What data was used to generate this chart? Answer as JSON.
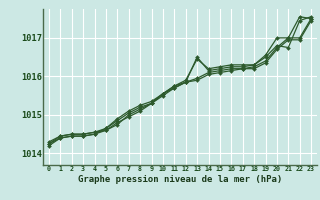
{
  "xlabel": "Graphe pression niveau de la mer (hPa)",
  "bg_color": "#cce8e4",
  "grid_color": "#ffffff",
  "line_color": "#2d5a2d",
  "axis_color": "#4a6a4a",
  "xlim": [
    -0.5,
    23.5
  ],
  "ylim": [
    1013.7,
    1017.75
  ],
  "yticks": [
    1014,
    1015,
    1016,
    1017
  ],
  "xticks": [
    0,
    1,
    2,
    3,
    4,
    5,
    6,
    7,
    8,
    9,
    10,
    11,
    12,
    13,
    14,
    15,
    16,
    17,
    18,
    19,
    20,
    21,
    22,
    23
  ],
  "series": [
    [
      1014.25,
      1014.45,
      1014.5,
      1014.5,
      1014.55,
      1014.6,
      1014.8,
      1014.95,
      1015.1,
      1015.3,
      1015.55,
      1015.75,
      1015.9,
      1016.45,
      1016.2,
      1016.25,
      1016.3,
      1016.3,
      1016.3,
      1016.55,
      1017.0,
      1017.0,
      1017.55,
      1017.5
    ],
    [
      1014.25,
      1014.4,
      1014.45,
      1014.45,
      1014.5,
      1014.65,
      1014.9,
      1015.1,
      1015.25,
      1015.35,
      1015.55,
      1015.75,
      1015.85,
      1015.95,
      1016.1,
      1016.15,
      1016.2,
      1016.2,
      1016.25,
      1016.4,
      1016.75,
      1017.0,
      1017.0,
      1017.5
    ],
    [
      1014.3,
      1014.45,
      1014.5,
      1014.5,
      1014.55,
      1014.65,
      1014.85,
      1015.05,
      1015.2,
      1015.3,
      1015.55,
      1015.7,
      1015.85,
      1016.5,
      1016.15,
      1016.2,
      1016.25,
      1016.25,
      1016.3,
      1016.5,
      1016.8,
      1016.75,
      1017.45,
      1017.55
    ],
    [
      1014.2,
      1014.4,
      1014.45,
      1014.45,
      1014.5,
      1014.6,
      1014.75,
      1015.0,
      1015.15,
      1015.3,
      1015.5,
      1015.7,
      1015.85,
      1015.9,
      1016.05,
      1016.1,
      1016.15,
      1016.2,
      1016.2,
      1016.35,
      1016.7,
      1016.95,
      1016.95,
      1017.45
    ]
  ]
}
